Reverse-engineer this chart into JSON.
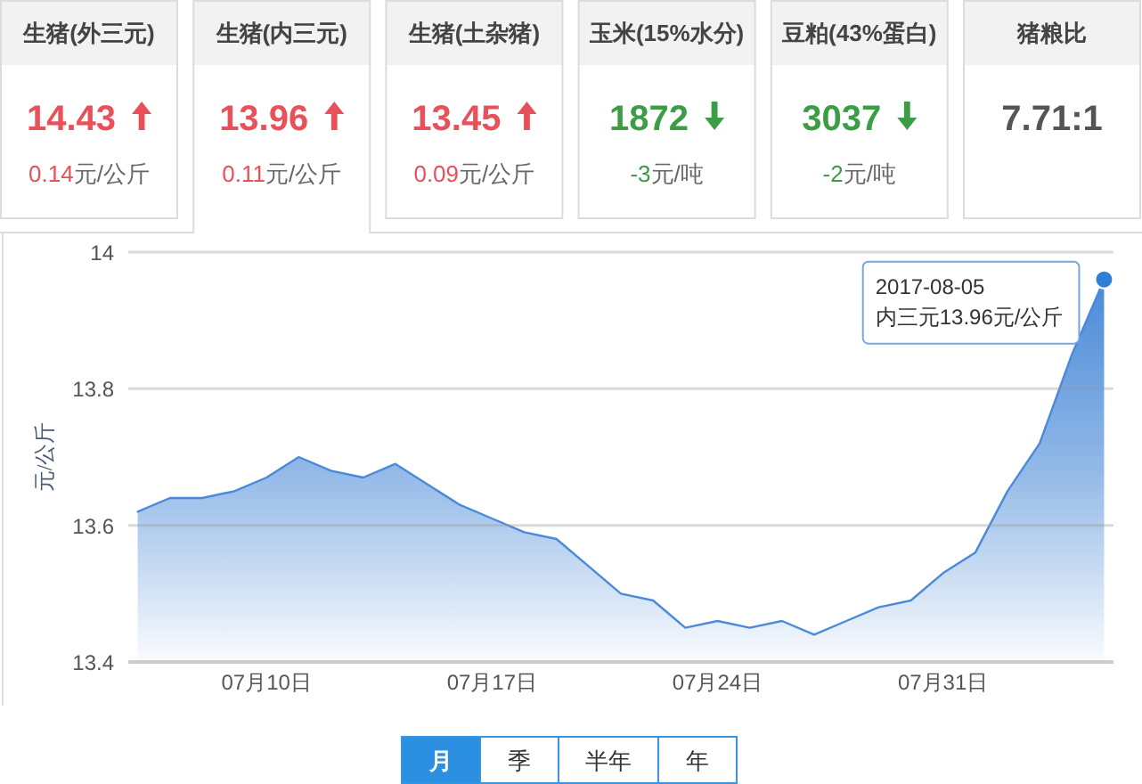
{
  "chart_data": [
    {
      "type": "other",
      "categories": [
        "生猪(外三元)",
        "生猪(内三元)",
        "生猪(土杂猪)",
        "玉米(15%水分)",
        "豆粕(43%蛋白)",
        "猪粮比"
      ],
      "annotations": [
        "14.43",
        "13.96",
        "13.45",
        "1872",
        "3037",
        "7.71:1"
      ],
      "values": [
        0.14,
        0.11,
        0.09,
        -3,
        -2,
        null
      ],
      "value_labels": [
        "0.14元/公斤",
        "0.11元/公斤",
        "0.09元/公斤",
        "-3元/吨",
        "-2元/吨",
        null
      ],
      "colors": [
        "#e8505a",
        "#e8505a",
        "#e8505a",
        "#3c9d46",
        "#3c9d46",
        "#555555"
      ]
    },
    {
      "type": "area",
      "ylabel": "元/公斤",
      "color": "#4a8ad8",
      "x": [
        "2017-07-06",
        "2017-07-07",
        "2017-07-08",
        "2017-07-09",
        "2017-07-10",
        "2017-07-11",
        "2017-07-12",
        "2017-07-13",
        "2017-07-14",
        "2017-07-15",
        "2017-07-16",
        "2017-07-17",
        "2017-07-18",
        "2017-07-19",
        "2017-07-20",
        "2017-07-21",
        "2017-07-22",
        "2017-07-23",
        "2017-07-24",
        "2017-07-25",
        "2017-07-26",
        "2017-07-27",
        "2017-07-28",
        "2017-07-29",
        "2017-07-30",
        "2017-07-31",
        "2017-08-01",
        "2017-08-02",
        "2017-08-03",
        "2017-08-04",
        "2017-08-05"
      ],
      "values": [
        13.62,
        13.64,
        13.64,
        13.65,
        13.67,
        13.7,
        13.68,
        13.67,
        13.69,
        13.66,
        13.63,
        13.61,
        13.59,
        13.58,
        13.54,
        13.5,
        13.49,
        13.45,
        13.46,
        13.45,
        13.46,
        13.44,
        13.46,
        13.48,
        13.49,
        13.53,
        13.56,
        13.65,
        13.72,
        13.85,
        13.96
      ],
      "xlim": [
        "2017-07-05T17:00",
        "2017-08-05T07:00"
      ],
      "xticks": [
        {
          "value": "2017-07-10",
          "label": "07月10日"
        },
        {
          "value": "2017-07-17",
          "label": "07月17日"
        },
        {
          "value": "2017-07-24",
          "label": "07月24日"
        },
        {
          "value": "2017-07-31",
          "label": "07月31日"
        }
      ],
      "ylim": [
        13.4,
        14
      ],
      "yticks": [
        13.4,
        13.6,
        13.8,
        14
      ],
      "grid": "y",
      "annotations": [
        {
          "text": "2017-08-05\n内三元13.96元/公斤",
          "x": "2017-08-05",
          "y": 13.96
        }
      ]
    },
    {
      "type": "other",
      "categories": [
        "月",
        "季",
        "半年",
        "年"
      ],
      "colors": [
        "#2b8fe2",
        "#ffffff",
        "#ffffff",
        "#ffffff"
      ]
    }
  ]
}
